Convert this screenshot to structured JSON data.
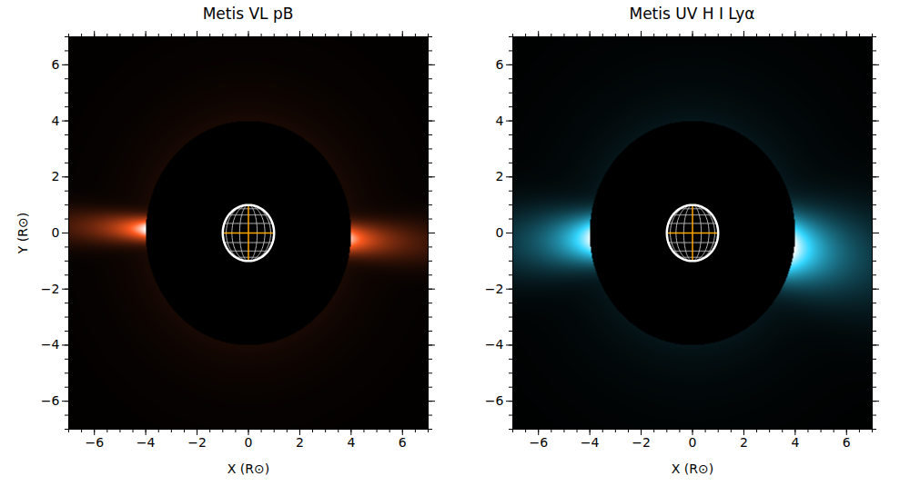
{
  "chart_data": [
    {
      "type": "image",
      "title": "Metis VL pB",
      "color": "#ff5a1f",
      "xlabel": "X (R⊙)",
      "ylabel": "Y (R⊙)",
      "xlim": [
        -7,
        7
      ],
      "ylim": [
        -7,
        7
      ],
      "xticks": [
        -6,
        -4,
        -2,
        0,
        2,
        4,
        6
      ],
      "yticks": [
        -6,
        -4,
        -2,
        0,
        2,
        4,
        6
      ],
      "occulter_radius": 4,
      "sun_radius": 1,
      "streamers": [
        {
          "angle": 178,
          "width": 4,
          "intensity": 1.0
        },
        {
          "angle": -3,
          "width": 5,
          "intensity": 0.85
        }
      ]
    },
    {
      "type": "image",
      "title": "Metis UV H I Lyα",
      "color": "#33d6ff",
      "xlabel": "X (R⊙)",
      "xlim": [
        -7,
        7
      ],
      "ylim": [
        -7,
        7
      ],
      "xticks": [
        -6,
        -4,
        -2,
        0,
        2,
        4,
        6
      ],
      "yticks": [
        -6,
        -4,
        -2,
        0,
        2,
        4,
        6
      ],
      "occulter_radius": 4,
      "sun_radius": 1,
      "streamers": [
        {
          "angle": 183,
          "width": 8,
          "intensity": 0.95
        },
        {
          "angle": -8,
          "width": 11,
          "intensity": 1.0
        }
      ]
    }
  ]
}
